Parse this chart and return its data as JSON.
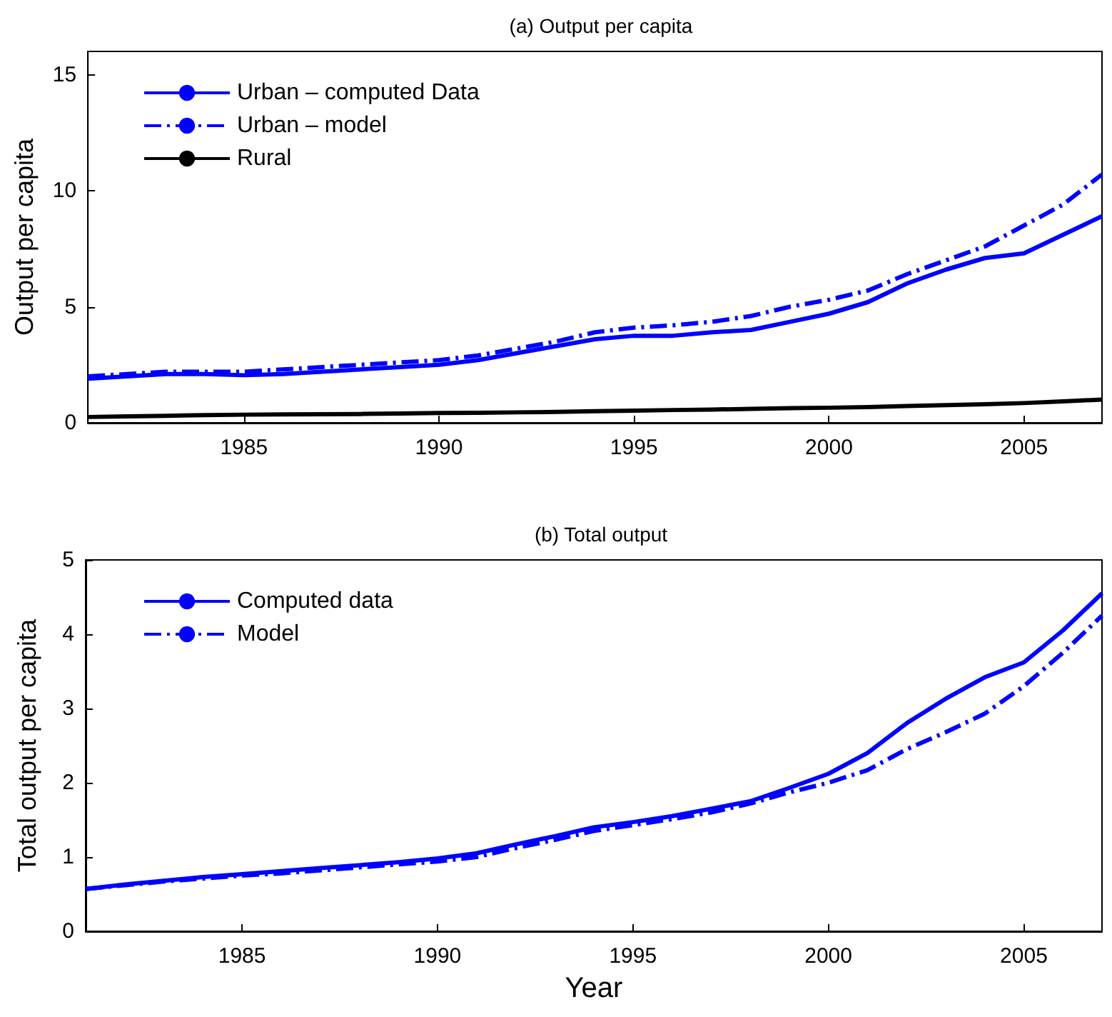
{
  "chart_data": [
    {
      "type": "line",
      "title": "(a) Output per capita",
      "ylabel": "Output per capita",
      "x": [
        1981,
        1982,
        1983,
        1984,
        1985,
        1986,
        1987,
        1988,
        1989,
        1990,
        1991,
        1992,
        1993,
        1994,
        1995,
        1996,
        1997,
        1998,
        1999,
        2000,
        2001,
        2002,
        2003,
        2004,
        2005,
        2006,
        2007
      ],
      "series": [
        {
          "name": "Urban – computed Data",
          "color": "#0000ff",
          "line_style": "solid",
          "values": [
            1.9,
            2.0,
            2.1,
            2.1,
            2.05,
            2.1,
            2.2,
            2.3,
            2.4,
            2.5,
            2.7,
            3.0,
            3.3,
            3.6,
            3.75,
            3.75,
            3.9,
            4.0,
            4.35,
            4.7,
            5.2,
            6.0,
            6.6,
            7.1,
            7.3,
            8.1,
            8.9
          ]
        },
        {
          "name": "Urban – model",
          "color": "#0000ff",
          "line_style": "dashed",
          "values": [
            2.0,
            2.1,
            2.2,
            2.2,
            2.2,
            2.3,
            2.4,
            2.5,
            2.6,
            2.7,
            2.9,
            3.2,
            3.5,
            3.9,
            4.1,
            4.2,
            4.35,
            4.6,
            5.0,
            5.3,
            5.7,
            6.4,
            7.0,
            7.6,
            8.5,
            9.4,
            10.7
          ]
        },
        {
          "name": "Rural",
          "color": "#000000",
          "line_style": "solid",
          "values": [
            0.25,
            0.28,
            0.3,
            0.33,
            0.35,
            0.36,
            0.37,
            0.38,
            0.4,
            0.42,
            0.43,
            0.45,
            0.47,
            0.5,
            0.52,
            0.55,
            0.57,
            0.6,
            0.63,
            0.65,
            0.68,
            0.72,
            0.76,
            0.8,
            0.85,
            0.92,
            1.0
          ]
        }
      ],
      "xlim": [
        1981,
        2007
      ],
      "xticks": [
        1985,
        1990,
        1995,
        2000,
        2005
      ],
      "ylim": [
        0,
        16
      ],
      "yticks": [
        0,
        5,
        10,
        15
      ],
      "grid": false,
      "legend": "top left",
      "marker": "none"
    },
    {
      "type": "line",
      "title": "(b) Total output",
      "xlabel": "Year",
      "ylabel": "Total output per capita",
      "x": [
        1981,
        1982,
        1983,
        1984,
        1985,
        1986,
        1987,
        1988,
        1989,
        1990,
        1991,
        1992,
        1993,
        1994,
        1995,
        1996,
        1997,
        1998,
        1999,
        2000,
        2001,
        2002,
        2003,
        2004,
        2005,
        2006,
        2007
      ],
      "series": [
        {
          "name": "Computed data",
          "color": "#0000ff",
          "line_style": "solid",
          "values": [
            0.57,
            0.63,
            0.68,
            0.73,
            0.77,
            0.81,
            0.85,
            0.89,
            0.93,
            0.98,
            1.05,
            1.17,
            1.28,
            1.4,
            1.47,
            1.55,
            1.65,
            1.75,
            1.93,
            2.12,
            2.4,
            2.8,
            3.13,
            3.42,
            3.62,
            4.05,
            4.55
          ]
        },
        {
          "name": "Model",
          "color": "#0000ff",
          "line_style": "dashed",
          "values": [
            0.57,
            0.62,
            0.67,
            0.71,
            0.75,
            0.78,
            0.82,
            0.86,
            0.9,
            0.94,
            1.0,
            1.12,
            1.23,
            1.35,
            1.43,
            1.51,
            1.6,
            1.72,
            1.87,
            2.0,
            2.17,
            2.45,
            2.68,
            2.93,
            3.3,
            3.75,
            4.25
          ]
        }
      ],
      "xlim": [
        1981,
        2007
      ],
      "xticks": [
        1985,
        1990,
        1995,
        2000,
        2005
      ],
      "ylim": [
        0,
        5
      ],
      "yticks": [
        0,
        1,
        2,
        3,
        4,
        5
      ],
      "grid": false,
      "legend": "top left",
      "marker": "none"
    }
  ]
}
